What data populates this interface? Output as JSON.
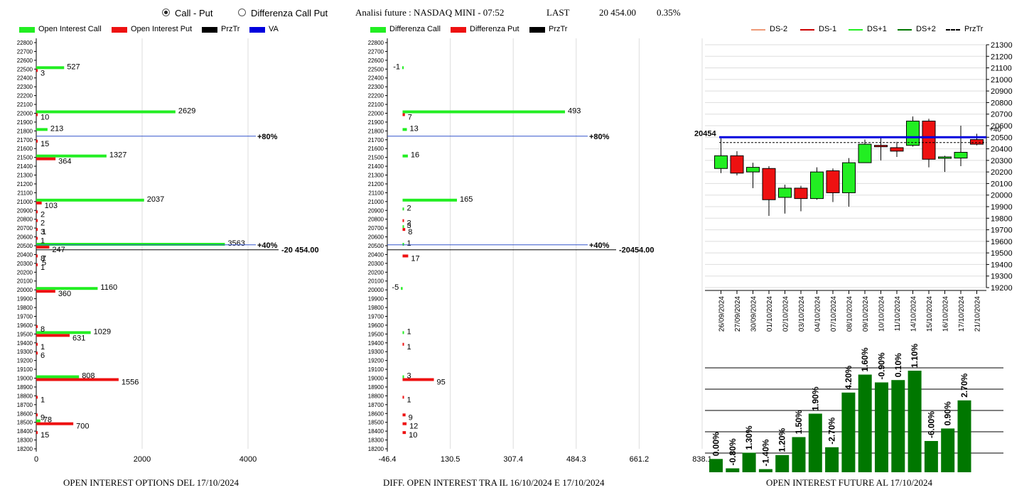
{
  "header": {
    "radio_call_put": "Call - Put",
    "radio_diff": "Differenza Call Put",
    "selected": "call_put",
    "analysis": "Analisi future : NASDAQ MINI - 07:52",
    "last_label": "LAST",
    "last_value": "20 454.00",
    "change": "0.35%"
  },
  "colors": {
    "green": "#22ee22",
    "red": "#ee1111",
    "black": "#000000",
    "blue": "#0000dd",
    "dkgreen": "#007700"
  },
  "legend_left": [
    {
      "label": "Open Interest Call",
      "color": "#22ee22"
    },
    {
      "label": "Open Interest Put",
      "color": "#ee1111"
    },
    {
      "label": "PrzTr",
      "color": "#000000"
    },
    {
      "label": "VA",
      "color": "#0000dd"
    }
  ],
  "legend_mid": [
    {
      "label": "Differenza Call",
      "color": "#22ee22"
    },
    {
      "label": "Differenza Put",
      "color": "#ee1111"
    },
    {
      "label": "PrzTr",
      "color": "#000000"
    }
  ],
  "legend_right": [
    {
      "label": "DS-2",
      "color": "#ee9977",
      "dash": false
    },
    {
      "label": "DS-1",
      "color": "#cc0000",
      "dash": false
    },
    {
      "label": "DS+1",
      "color": "#22ee22",
      "dash": false
    },
    {
      "label": "DS+2",
      "color": "#007700",
      "dash": false
    },
    {
      "label": "PrzTr",
      "color": "#000000",
      "dash": true
    }
  ],
  "captions": {
    "left": "OPEN INTEREST OPTIONS DEL 17/10/2024",
    "mid": "DIFF. OPEN INTEREST TRA IL 16/10/2024 E 17/10/2024",
    "right": "OPEN INTEREST FUTURE AL 17/10/2024"
  },
  "chart_data": [
    {
      "type": "bar",
      "orientation": "horizontal",
      "strikes": {
        "min": 18200,
        "max": 22800,
        "step": 100
      },
      "xticks": [
        "0",
        "2000",
        "4000"
      ],
      "xlim": [
        0,
        6000
      ],
      "call": [
        [
          22500,
          527
        ],
        [
          22000,
          2629
        ],
        [
          21800,
          213
        ],
        [
          21500,
          1327
        ],
        [
          21000,
          2037
        ],
        [
          20500,
          3563
        ],
        [
          20000,
          1160
        ],
        [
          19500,
          1029
        ],
        [
          19000,
          808
        ],
        [
          18500,
          78
        ]
      ],
      "put": [
        [
          22500,
          3
        ],
        [
          22000,
          10
        ],
        [
          21700,
          15
        ],
        [
          21500,
          364
        ],
        [
          21000,
          103
        ],
        [
          20900,
          2
        ],
        [
          20800,
          2
        ],
        [
          20700,
          3
        ],
        [
          20600,
          1
        ],
        [
          20500,
          247
        ],
        [
          20400,
          8
        ],
        [
          20300,
          1
        ],
        [
          20000,
          360
        ],
        [
          19600,
          8
        ],
        [
          19500,
          631
        ],
        [
          19400,
          1
        ],
        [
          19300,
          6
        ],
        [
          19000,
          1556
        ],
        [
          18800,
          1
        ],
        [
          18600,
          9
        ],
        [
          18500,
          700
        ],
        [
          18400,
          15
        ]
      ],
      "extra_labels": [
        [
          20700,
          "1"
        ],
        [
          20400,
          "7"
        ],
        [
          20350,
          "5"
        ]
      ],
      "va_lines": [
        {
          "strike": 21740,
          "label": "80%"
        },
        {
          "strike": 20510,
          "label": "40%"
        }
      ],
      "przTr": {
        "strike": 20454,
        "label": "20 454.00"
      }
    },
    {
      "type": "bar",
      "orientation": "horizontal",
      "strikes": {
        "min": 18200,
        "max": 22800,
        "step": 100
      },
      "xticks": [
        "-46.4",
        "130.5",
        "307.4",
        "484.3",
        "661.2",
        "838.1"
      ],
      "xlim": [
        -46.4,
        838.1
      ],
      "call": [
        [
          22500,
          -1
        ],
        [
          22000,
          493
        ],
        [
          21800,
          13
        ],
        [
          21500,
          16
        ],
        [
          21000,
          165
        ],
        [
          20900,
          2
        ],
        [
          20700,
          3
        ],
        [
          20500,
          1
        ],
        [
          20000,
          -5
        ],
        [
          19500,
          1
        ],
        [
          19000,
          3
        ]
      ],
      "put": [
        [
          22000,
          7
        ],
        [
          20800,
          2
        ],
        [
          20700,
          8
        ],
        [
          20400,
          17
        ],
        [
          19400,
          1
        ],
        [
          19000,
          95
        ],
        [
          18800,
          1
        ],
        [
          18600,
          9
        ],
        [
          18500,
          12
        ],
        [
          18400,
          10
        ]
      ],
      "va_lines": [
        {
          "strike": 21740,
          "label": "80%"
        },
        {
          "strike": 20510,
          "label": "40%"
        }
      ],
      "przTr": {
        "strike": 20454,
        "label": "20454.00"
      }
    },
    {
      "type": "candlestick",
      "ylim": [
        19200,
        21300
      ],
      "yticks": [
        "19200",
        "19300",
        "19400",
        "19500",
        "19600",
        "19700",
        "19800",
        "19900",
        "20000",
        "20100",
        "20200",
        "20300",
        "20400",
        "20500",
        "20600",
        "20700",
        "20800",
        "20900",
        "21000",
        "21100",
        "21200",
        "21300"
      ],
      "dates": [
        "26/09/2024",
        "27/09/2024",
        "30/09/2024",
        "01/10/2024",
        "02/10/2024",
        "03/10/2024",
        "04/10/2024",
        "07/10/2024",
        "08/10/2024",
        "09/10/2024",
        "10/10/2024",
        "11/10/2024",
        "14/10/2024",
        "15/10/2024",
        "16/10/2024",
        "17/10/2024",
        "21/10/2024"
      ],
      "candles": [
        {
          "o": 20230,
          "h": 20490,
          "l": 20190,
          "c": 20340
        },
        {
          "o": 20340,
          "h": 20380,
          "l": 20170,
          "c": 20190
        },
        {
          "o": 20200,
          "h": 20280,
          "l": 20060,
          "c": 20240
        },
        {
          "o": 20230,
          "h": 20250,
          "l": 19820,
          "c": 19960
        },
        {
          "o": 19980,
          "h": 20090,
          "l": 19840,
          "c": 20060
        },
        {
          "o": 20060,
          "h": 20080,
          "l": 19860,
          "c": 19970
        },
        {
          "o": 19970,
          "h": 20240,
          "l": 19960,
          "c": 20200
        },
        {
          "o": 20210,
          "h": 20230,
          "l": 19940,
          "c": 20020
        },
        {
          "o": 20020,
          "h": 20320,
          "l": 19900,
          "c": 20280
        },
        {
          "o": 20280,
          "h": 20480,
          "l": 20280,
          "c": 20440
        },
        {
          "o": 20430,
          "h": 20500,
          "l": 20300,
          "c": 20420
        },
        {
          "o": 20410,
          "h": 20460,
          "l": 20330,
          "c": 20380
        },
        {
          "o": 20430,
          "h": 20680,
          "l": 20420,
          "c": 20640
        },
        {
          "o": 20640,
          "h": 20660,
          "l": 20240,
          "c": 20310
        },
        {
          "o": 20320,
          "h": 20340,
          "l": 20200,
          "c": 20330
        },
        {
          "o": 20320,
          "h": 20600,
          "l": 20250,
          "c": 20370
        },
        {
          "o": 20480,
          "h": 20530,
          "l": 20430,
          "c": 20440
        }
      ],
      "hlines": [
        {
          "value": 20500,
          "label": "20454"
        },
        {
          "value": 20454
        }
      ],
      "right_tag": "+40"
    },
    {
      "type": "bar",
      "labels": [
        "0.00%",
        "-0.80%",
        "1.30%",
        "-1.40%",
        "1.20%",
        "1.50%",
        "1.90%",
        "-2.70%",
        "4.20%",
        "1.60%",
        "-0.90%",
        "0.10%",
        "1.10%",
        "-6.00%",
        "0.90%",
        "2.70%"
      ],
      "values": [
        0.17,
        0.05,
        0.25,
        0.04,
        0.22,
        0.45,
        0.75,
        0.32,
        1.02,
        1.25,
        1.15,
        1.18,
        1.3,
        0.4,
        0.56,
        0.92
      ]
    }
  ]
}
